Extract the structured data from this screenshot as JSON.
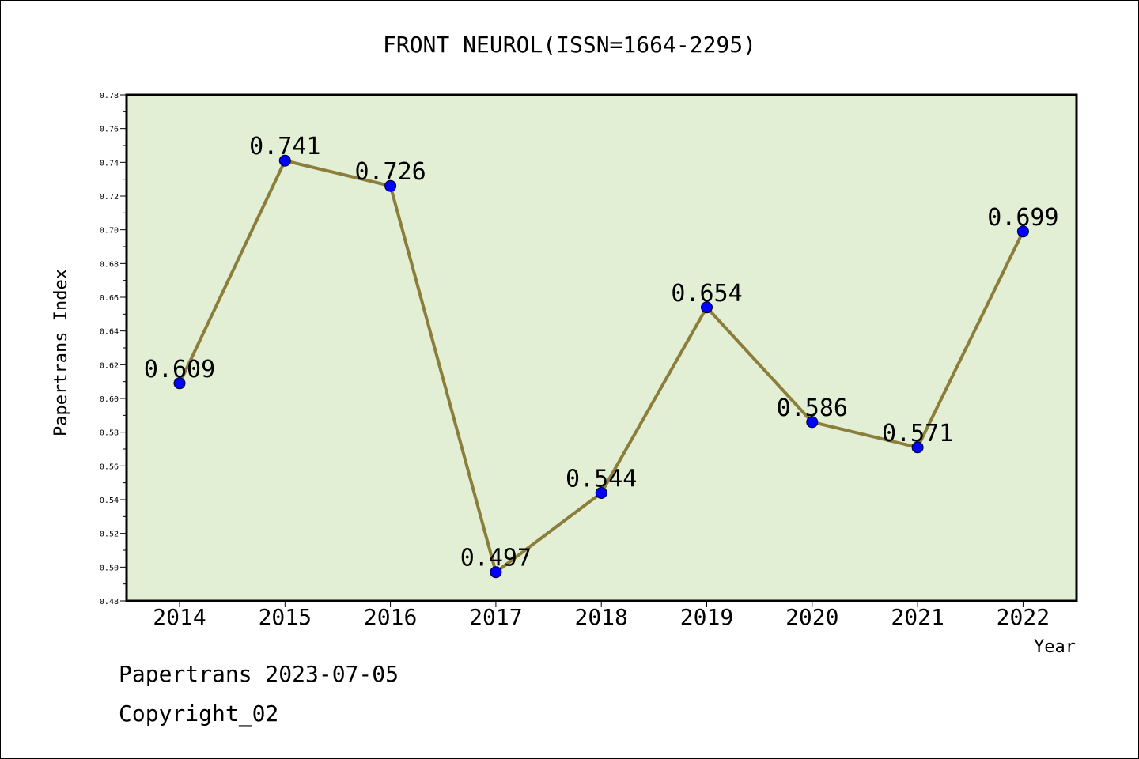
{
  "chart_data": {
    "type": "line",
    "title": "FRONT NEUROL(ISSN=1664-2295)",
    "xlabel": "Year",
    "ylabel": "Papertrans Index",
    "categories": [
      "2014",
      "2015",
      "2016",
      "2017",
      "2018",
      "2019",
      "2020",
      "2021",
      "2022"
    ],
    "values": [
      0.609,
      0.741,
      0.726,
      0.497,
      0.544,
      0.654,
      0.586,
      0.571,
      0.699
    ],
    "value_labels": [
      "0.609",
      "0.741",
      "0.726",
      "0.497",
      "0.544",
      "0.654",
      "0.586",
      "0.571",
      "0.699"
    ],
    "ylim": [
      0.48,
      0.78
    ],
    "yticks": [
      "0.48",
      "0.50",
      "0.52",
      "0.54",
      "0.56",
      "0.58",
      "0.60",
      "0.62",
      "0.64",
      "0.66",
      "0.68",
      "0.70",
      "0.72",
      "0.74",
      "0.76",
      "0.78"
    ],
    "grid": false,
    "colors": {
      "plot_background": "#e2efd4",
      "line": "#8b7d3a",
      "marker": "#0000ff"
    }
  },
  "footer": {
    "line1": "Papertrans 2023-07-05",
    "line2": "Copyright_02"
  }
}
